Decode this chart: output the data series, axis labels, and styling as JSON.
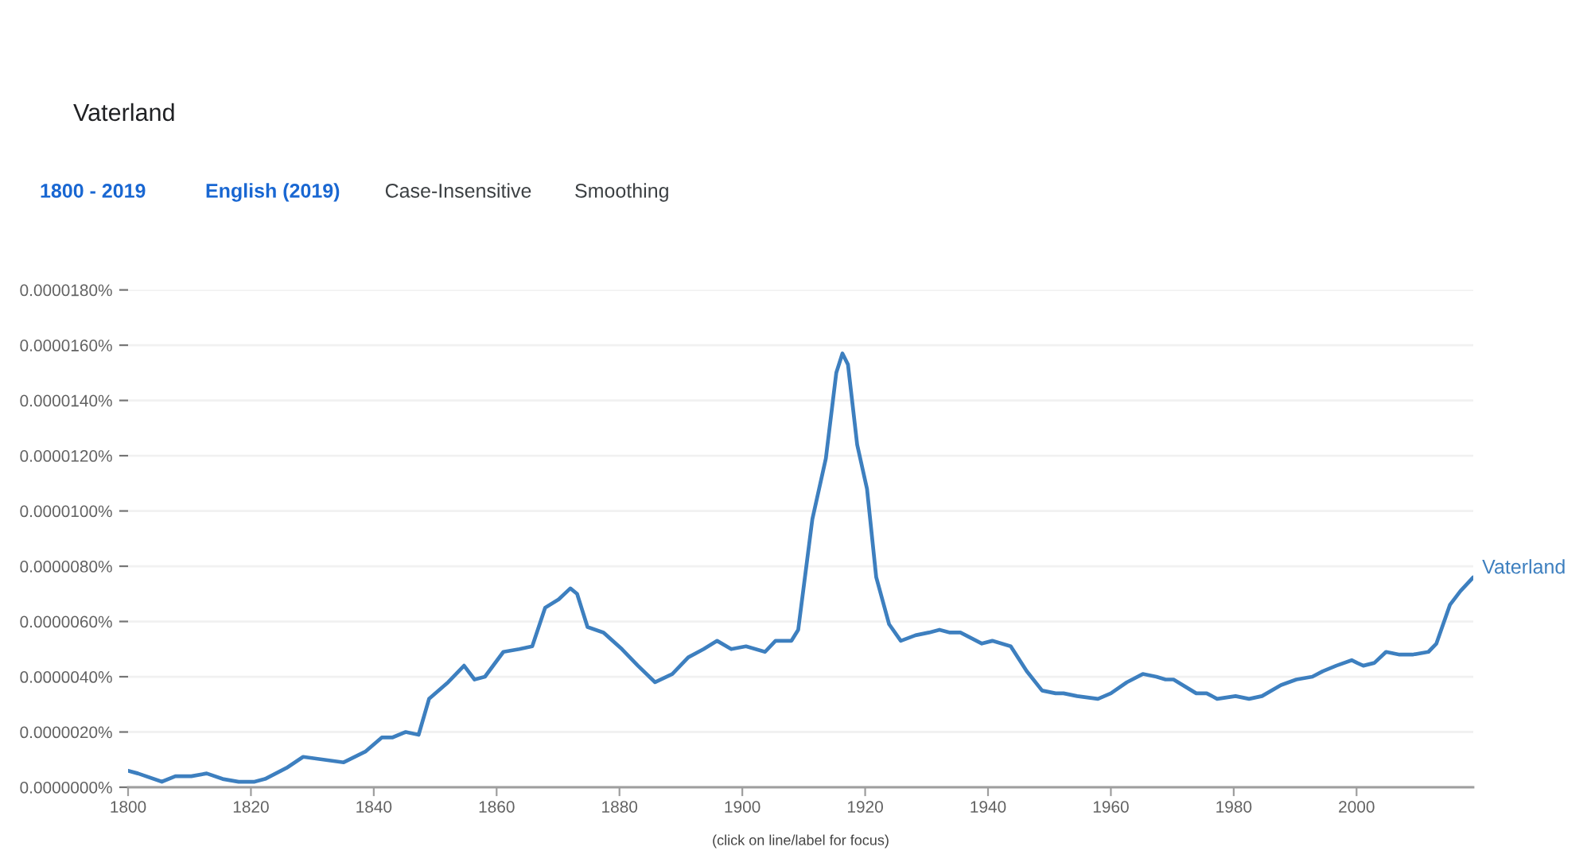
{
  "chart_data": {
    "type": "line",
    "subtitle": "Vaterland",
    "annotations": [
      "1800 - 2019",
      "English (2019)",
      "Case-Insensitive",
      "Smoothing",
      "(click on line/label for focus)"
    ],
    "x": [
      1800.0,
      1801.6,
      1805.5,
      1807.7,
      1810.3,
      1812.8,
      1815.4,
      1818.0,
      1820.6,
      1822.3,
      1825.8,
      1828.5,
      1831.8,
      1835.1,
      1838.7,
      1841.3,
      1843.0,
      1845.2,
      1847.3,
      1849.0,
      1852.1,
      1854.7,
      1856.4,
      1858.1,
      1861.1,
      1863.7,
      1865.8,
      1867.9,
      1870.1,
      1872.0,
      1873.1,
      1874.8,
      1877.4,
      1880.4,
      1883.0,
      1885.8,
      1888.6,
      1891.2,
      1893.7,
      1895.9,
      1898.2,
      1900.6,
      1903.7,
      1905.4,
      1908.0,
      1909.1,
      1911.4,
      1913.6,
      1915.3,
      1916.3,
      1917.2,
      1918.7,
      1920.3,
      1921.8,
      1923.9,
      1925.8,
      1928.2,
      1930.4,
      1932.1,
      1933.8,
      1935.5,
      1939.0,
      1940.7,
      1943.7,
      1946.3,
      1948.8,
      1951.0,
      1952.3,
      1954.5,
      1957.9,
      1960.0,
      1962.6,
      1965.2,
      1967.4,
      1968.9,
      1970.2,
      1973.9,
      1975.6,
      1977.3,
      1980.3,
      1982.5,
      1984.6,
      1987.7,
      1990.2,
      1992.8,
      1994.5,
      1996.7,
      1999.2,
      2000.1,
      2001.1,
      2002.9,
      2004.8,
      2007.0,
      2009.1,
      2011.7,
      2013.0,
      2015.2,
      2016.9,
      2019.0
    ],
    "series": [
      {
        "name": "Vaterland",
        "color": "#3d7fbf",
        "values": [
          6e-07,
          5e-07,
          2e-07,
          4e-07,
          4e-07,
          5e-07,
          3e-07,
          2e-07,
          2e-07,
          3e-07,
          7e-07,
          1.1e-06,
          1e-06,
          9e-07,
          1.3e-06,
          1.8e-06,
          1.8e-06,
          2e-06,
          1.9e-06,
          3.2e-06,
          3.8e-06,
          4.4e-06,
          3.9e-06,
          4e-06,
          4.9e-06,
          5e-06,
          5.1e-06,
          6.5e-06,
          6.8e-06,
          7.2e-06,
          7e-06,
          5.8e-06,
          5.6e-06,
          5e-06,
          4.4e-06,
          3.8e-06,
          4.1e-06,
          4.7e-06,
          5e-06,
          5.3e-06,
          5e-06,
          5.1e-06,
          4.9e-06,
          5.3e-06,
          5.3e-06,
          5.7e-06,
          9.7e-06,
          1.19e-05,
          1.5e-05,
          1.57e-05,
          1.53e-05,
          1.24e-05,
          1.08e-05,
          7.6e-06,
          5.9e-06,
          5.3e-06,
          5.5e-06,
          5.6e-06,
          5.7e-06,
          5.6e-06,
          5.6e-06,
          5.2e-06,
          5.3e-06,
          5.1e-06,
          4.2e-06,
          3.5e-06,
          3.4e-06,
          3.4e-06,
          3.3e-06,
          3.2e-06,
          3.4e-06,
          3.8e-06,
          4.1e-06,
          4e-06,
          3.9e-06,
          3.9e-06,
          3.4e-06,
          3.4e-06,
          3.2e-06,
          3.3e-06,
          3.2e-06,
          3.3e-06,
          3.7e-06,
          3.9e-06,
          4e-06,
          4.2e-06,
          4.4e-06,
          4.6e-06,
          4.5e-06,
          4.4e-06,
          4.5e-06,
          4.9e-06,
          4.8e-06,
          4.8e-06,
          4.9e-06,
          5.2e-06,
          6.6e-06,
          7.1e-06,
          7.6e-06
        ]
      }
    ],
    "xlim": [
      1800,
      2019
    ],
    "xticks": [
      1800,
      1820,
      1840,
      1860,
      1880,
      1900,
      1920,
      1940,
      1960,
      1980,
      2000
    ],
    "ylim": [
      0,
      1.8e-05
    ],
    "yticks": [
      {
        "value": 0,
        "label": "0.0000000%"
      },
      {
        "value": 2e-06,
        "label": "0.0000020%"
      },
      {
        "value": 4e-06,
        "label": "0.0000040%"
      },
      {
        "value": 6e-06,
        "label": "0.0000060%"
      },
      {
        "value": 8e-06,
        "label": "0.0000080%"
      },
      {
        "value": 1e-05,
        "label": "0.0000100%"
      },
      {
        "value": 1.2e-05,
        "label": "0.0000120%"
      },
      {
        "value": 1.4e-05,
        "label": "0.0000140%"
      },
      {
        "value": 1.6e-05,
        "label": "0.0000160%"
      },
      {
        "value": 1.8e-05,
        "label": "0.0000180%"
      }
    ],
    "grid": "y"
  }
}
